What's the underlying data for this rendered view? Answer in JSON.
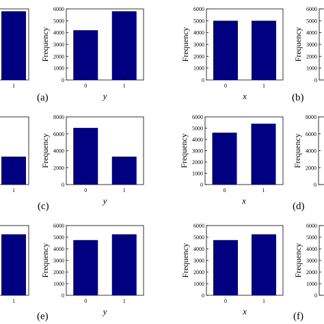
{
  "chart_data": [
    {
      "type": "bar",
      "categories": [
        "1"
      ],
      "values": [
        5800
      ],
      "ylim": [
        0,
        6000
      ],
      "yticks": [],
      "ylabel": "",
      "xlabel": "",
      "color": "#000080"
    },
    {
      "type": "bar",
      "categories": [
        "0",
        "1"
      ],
      "values": [
        4200,
        5800
      ],
      "ylim": [
        0,
        6000
      ],
      "yticks": [
        0,
        1000,
        2000,
        3000,
        4000,
        5000,
        6000
      ],
      "ylabel": "Frequency",
      "xlabel": "y",
      "color": "#000080"
    },
    {
      "type": "bar",
      "categories": [
        "0",
        "1"
      ],
      "values": [
        5000,
        5000
      ],
      "ylim": [
        0,
        6000
      ],
      "yticks": [
        0,
        1000,
        2000,
        3000,
        4000,
        5000,
        6000
      ],
      "ylabel": "Frequency",
      "xlabel": "x",
      "color": "#000080"
    },
    {
      "type": "bar",
      "categories": [],
      "values": [],
      "ylim": [
        0,
        6000
      ],
      "yticks": [
        0,
        1000,
        2000,
        3000,
        4000,
        5000,
        6000
      ],
      "ylabel": "Frequency",
      "xlabel": "",
      "color": "#000080"
    },
    {
      "type": "bar",
      "categories": [
        "1"
      ],
      "values": [
        3300
      ],
      "ylim": [
        0,
        8000
      ],
      "yticks": [],
      "ylabel": "",
      "xlabel": "",
      "color": "#000080"
    },
    {
      "type": "bar",
      "categories": [
        "0",
        "1"
      ],
      "values": [
        6700,
        3300
      ],
      "ylim": [
        0,
        8000
      ],
      "yticks": [
        0,
        2000,
        4000,
        6000,
        8000
      ],
      "ylabel": "Frequency",
      "xlabel": "y",
      "color": "#000080"
    },
    {
      "type": "bar",
      "categories": [
        "0",
        "1"
      ],
      "values": [
        4600,
        5400
      ],
      "ylim": [
        0,
        6000
      ],
      "yticks": [
        0,
        1000,
        2000,
        3000,
        4000,
        5000,
        6000
      ],
      "ylabel": "Frequency",
      "xlabel": "x",
      "color": "#000080"
    },
    {
      "type": "bar",
      "categories": [],
      "values": [],
      "ylim": [
        0,
        8000
      ],
      "yticks": [
        0,
        2000,
        4000,
        6000,
        8000
      ],
      "ylabel": "Frequency",
      "xlabel": "",
      "color": "#000080"
    },
    {
      "type": "bar",
      "categories": [
        "1"
      ],
      "values": [
        5250
      ],
      "ylim": [
        0,
        6000
      ],
      "yticks": [],
      "ylabel": "",
      "xlabel": "",
      "color": "#000080"
    },
    {
      "type": "bar",
      "categories": [
        "0",
        "1"
      ],
      "values": [
        4750,
        5250
      ],
      "ylim": [
        0,
        6000
      ],
      "yticks": [
        0,
        1000,
        2000,
        3000,
        4000,
        5000,
        6000
      ],
      "ylabel": "Frequency",
      "xlabel": "y",
      "color": "#000080"
    },
    {
      "type": "bar",
      "categories": [
        "0",
        "1"
      ],
      "values": [
        4750,
        5250
      ],
      "ylim": [
        0,
        6000
      ],
      "yticks": [
        0,
        1000,
        2000,
        3000,
        4000,
        5000,
        6000
      ],
      "ylabel": "Frequency",
      "xlabel": "x",
      "color": "#000080"
    },
    {
      "type": "bar",
      "categories": [],
      "values": [],
      "ylim": [
        0,
        6000
      ],
      "yticks": [
        0,
        1000,
        2000,
        3000,
        4000,
        5000,
        6000
      ],
      "ylabel": "Frequency",
      "xlabel": "",
      "color": "#000080"
    }
  ],
  "panel_labels": [
    "(a)",
    "(b)",
    "(c)",
    "(d)",
    "(e)",
    "(f)"
  ]
}
